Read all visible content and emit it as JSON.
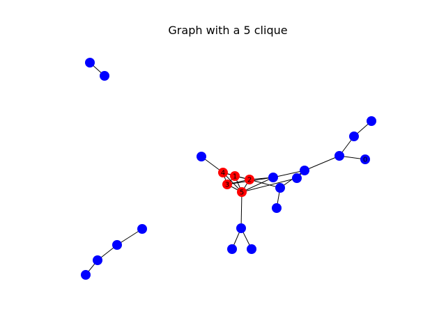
{
  "figure": {
    "title": "Graph with a 5 clique"
  },
  "graph": {
    "colors": {
      "clique": "#ff0000",
      "other": "#0000ff",
      "edge": "#000000"
    },
    "nodes": [
      {
        "id": "n4",
        "label": "4",
        "group": "clique"
      },
      {
        "id": "n1",
        "label": "1",
        "group": "clique"
      },
      {
        "id": "n3",
        "label": "3",
        "group": "clique"
      },
      {
        "id": "n2",
        "label": "2",
        "group": "clique"
      },
      {
        "id": "n5",
        "label": "5",
        "group": "clique"
      },
      {
        "id": "h1",
        "label": "",
        "group": "other"
      },
      {
        "id": "h2",
        "label": "",
        "group": "other"
      },
      {
        "id": "c1",
        "label": "",
        "group": "other"
      },
      {
        "id": "c2",
        "label": "",
        "group": "other"
      },
      {
        "id": "c3",
        "label": "",
        "group": "other"
      },
      {
        "id": "c4",
        "label": "",
        "group": "other"
      },
      {
        "id": "c5",
        "label": "",
        "group": "other"
      },
      {
        "id": "c6",
        "label": "",
        "group": "other"
      },
      {
        "id": "c7",
        "label": "",
        "group": "other"
      },
      {
        "id": "c8",
        "label": "",
        "group": "other"
      },
      {
        "id": "c9",
        "label": "",
        "group": "other"
      },
      {
        "id": "c10",
        "label": "0",
        "group": "other"
      },
      {
        "id": "c11",
        "label": "",
        "group": "other"
      },
      {
        "id": "c12",
        "label": "",
        "group": "other"
      },
      {
        "id": "c13",
        "label": "",
        "group": "other"
      },
      {
        "id": "p1",
        "label": "",
        "group": "other"
      },
      {
        "id": "p2",
        "label": "",
        "group": "other"
      },
      {
        "id": "p3",
        "label": "",
        "group": "other"
      },
      {
        "id": "p4",
        "label": "",
        "group": "other"
      }
    ],
    "edges": [
      [
        "n4",
        "n1"
      ],
      [
        "n4",
        "n3"
      ],
      [
        "n4",
        "n2"
      ],
      [
        "n4",
        "n5"
      ],
      [
        "n1",
        "n3"
      ],
      [
        "n1",
        "n2"
      ],
      [
        "n1",
        "n5"
      ],
      [
        "n3",
        "n2"
      ],
      [
        "n3",
        "n5"
      ],
      [
        "n2",
        "n5"
      ],
      [
        "c1",
        "n4"
      ],
      [
        "n2",
        "c2"
      ],
      [
        "n2",
        "c3"
      ],
      [
        "n3",
        "c2"
      ],
      [
        "n5",
        "c2"
      ],
      [
        "n5",
        "c4"
      ],
      [
        "c2",
        "c5"
      ],
      [
        "c3",
        "c5"
      ],
      [
        "c4",
        "c5"
      ],
      [
        "c5",
        "c6"
      ],
      [
        "c6",
        "c7"
      ],
      [
        "c7",
        "c8"
      ],
      [
        "c6",
        "c10"
      ],
      [
        "c3",
        "c9"
      ],
      [
        "n5",
        "c11"
      ],
      [
        "c11",
        "c12"
      ],
      [
        "c11",
        "c13"
      ],
      [
        "h1",
        "h2"
      ],
      [
        "p1",
        "p2"
      ],
      [
        "p2",
        "p3"
      ],
      [
        "p3",
        "p4"
      ]
    ]
  }
}
